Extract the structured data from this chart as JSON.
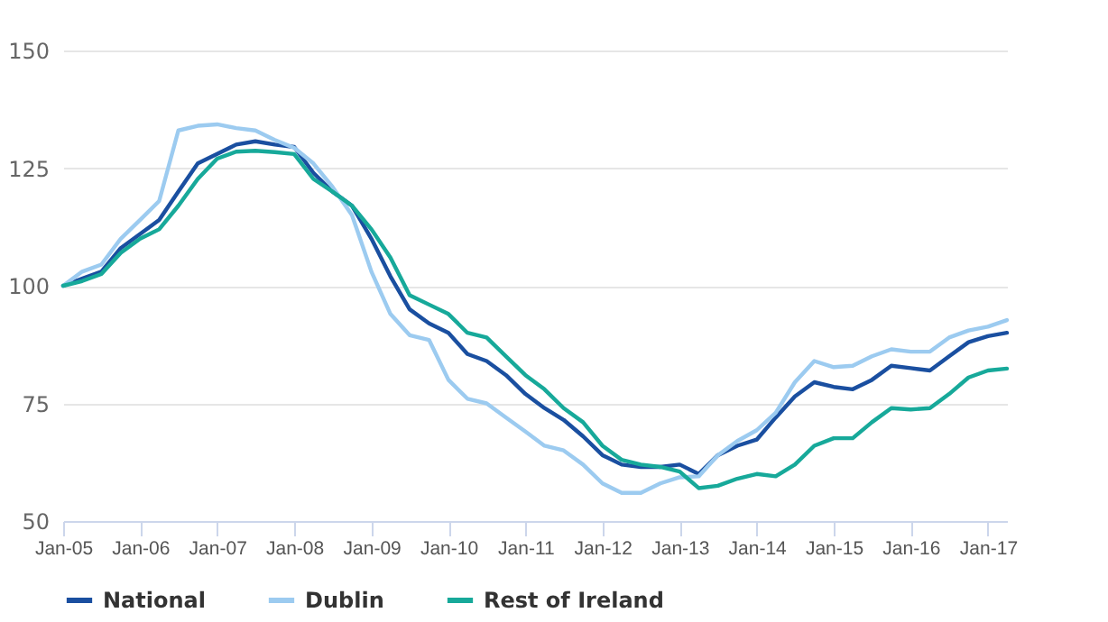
{
  "chart_data": {
    "type": "line",
    "x": [
      "2005-01",
      "2005-04",
      "2005-07",
      "2005-10",
      "2006-01",
      "2006-04",
      "2006-07",
      "2006-10",
      "2007-01",
      "2007-04",
      "2007-07",
      "2007-10",
      "2008-01",
      "2008-04",
      "2008-07",
      "2008-10",
      "2009-01",
      "2009-04",
      "2009-07",
      "2009-10",
      "2010-01",
      "2010-04",
      "2010-07",
      "2010-10",
      "2011-01",
      "2011-04",
      "2011-07",
      "2011-10",
      "2012-01",
      "2012-04",
      "2012-07",
      "2012-10",
      "2013-01",
      "2013-04",
      "2013-07",
      "2013-10",
      "2014-01",
      "2014-04",
      "2014-07",
      "2014-10",
      "2015-01",
      "2015-04",
      "2015-07",
      "2015-10",
      "2016-01",
      "2016-04",
      "2016-07",
      "2016-10",
      "2017-01",
      "2017-04"
    ],
    "series": [
      {
        "name": "National",
        "color": "#1a4fa0",
        "values": [
          100,
          101.5,
          103,
          108,
          111,
          114,
          120,
          126,
          128,
          130,
          130.7,
          130,
          129.5,
          124,
          120,
          117,
          110,
          102,
          95,
          92,
          90,
          85.5,
          84,
          81,
          77,
          74,
          71.5,
          68,
          64,
          62,
          61.5,
          61.5,
          62,
          60,
          64,
          66,
          67.3,
          72,
          76.5,
          79.5,
          78.5,
          78,
          80,
          83,
          82.5,
          82,
          85,
          88,
          89.3,
          90
        ]
      },
      {
        "name": "Dublin",
        "color": "#9ccbf0",
        "values": [
          100,
          103,
          104.5,
          110,
          114,
          118,
          133,
          134,
          134.3,
          133.5,
          133,
          131,
          129.3,
          126,
          121,
          115,
          103,
          94,
          89.5,
          88.5,
          80,
          76,
          75,
          72,
          69,
          66,
          65,
          62,
          58,
          56,
          56,
          58,
          59.3,
          59.5,
          64,
          67,
          69.3,
          73,
          79.5,
          84,
          82.7,
          83,
          85,
          86.5,
          86,
          86,
          89,
          90.5,
          91.3,
          92.7
        ]
      },
      {
        "name": "Rest of Ireland",
        "color": "#17a99a",
        "values": [
          100,
          101,
          102.5,
          107,
          110,
          112,
          117,
          122.7,
          127,
          128.5,
          128.7,
          128.4,
          128,
          122.7,
          120,
          117,
          112,
          106,
          98,
          96,
          94,
          90,
          89,
          85,
          81,
          78,
          74,
          71,
          66,
          63,
          62,
          61.5,
          60.5,
          57,
          57.5,
          59,
          60,
          59.5,
          62,
          66,
          67.6,
          67.6,
          71,
          74,
          73.7,
          74,
          77,
          80.5,
          82,
          82.4
        ]
      }
    ],
    "xlim": [
      "2005-01",
      "2017-04"
    ],
    "xticks": [
      {
        "value": "2005-01",
        "label": "Jan-05"
      },
      {
        "value": "2006-01",
        "label": "Jan-06"
      },
      {
        "value": "2007-01",
        "label": "Jan-07"
      },
      {
        "value": "2008-01",
        "label": "Jan-08"
      },
      {
        "value": "2009-01",
        "label": "Jan-09"
      },
      {
        "value": "2010-01",
        "label": "Jan-10"
      },
      {
        "value": "2011-01",
        "label": "Jan-11"
      },
      {
        "value": "2012-01",
        "label": "Jan-12"
      },
      {
        "value": "2013-01",
        "label": "Jan-13"
      },
      {
        "value": "2014-01",
        "label": "Jan-14"
      },
      {
        "value": "2015-01",
        "label": "Jan-15"
      },
      {
        "value": "2016-01",
        "label": "Jan-16"
      },
      {
        "value": "2017-01",
        "label": "Jan-17"
      }
    ],
    "ylim": [
      50,
      150
    ],
    "yticks": [
      50,
      75,
      100,
      125,
      150
    ],
    "grid": "y",
    "legend": "bottom",
    "marker": "none",
    "line_style": "solid"
  }
}
